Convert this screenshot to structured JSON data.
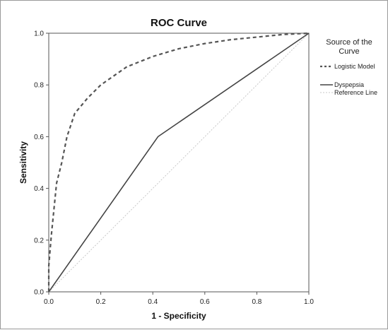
{
  "chart_data": {
    "type": "line",
    "title": "ROC Curve",
    "xlabel": "1 - Specificity",
    "ylabel": "Sensitivity",
    "xlim": [
      0,
      1
    ],
    "ylim": [
      0,
      1
    ],
    "xticks": [
      "0.0",
      "0.2",
      "0.4",
      "0.6",
      "0.8",
      "1.0"
    ],
    "yticks": [
      "0.0",
      "0.2",
      "0.4",
      "0.6",
      "0.8",
      "1.0"
    ],
    "grid": false,
    "legend": {
      "title_lines": [
        "Source of the",
        "Curve"
      ],
      "position": "right"
    },
    "series": [
      {
        "name": "Logistic Model",
        "style": "dashed",
        "color": "#555555",
        "x": [
          0.0,
          0.0,
          0.01,
          0.02,
          0.03,
          0.05,
          0.07,
          0.1,
          0.15,
          0.2,
          0.3,
          0.4,
          0.5,
          0.6,
          0.7,
          0.8,
          0.9,
          1.0
        ],
        "y": [
          0.0,
          0.1,
          0.22,
          0.32,
          0.42,
          0.5,
          0.6,
          0.69,
          0.75,
          0.8,
          0.87,
          0.91,
          0.94,
          0.96,
          0.975,
          0.985,
          0.995,
          1.0
        ]
      },
      {
        "name": "Dyspepsia",
        "style": "solid",
        "color": "#444444",
        "x": [
          0.0,
          0.42,
          1.0
        ],
        "y": [
          0.0,
          0.6,
          1.0
        ]
      },
      {
        "name": "Reference Line",
        "style": "dotted",
        "color": "#c8c8c8",
        "x": [
          0.0,
          1.0
        ],
        "y": [
          0.0,
          1.0
        ]
      }
    ]
  }
}
